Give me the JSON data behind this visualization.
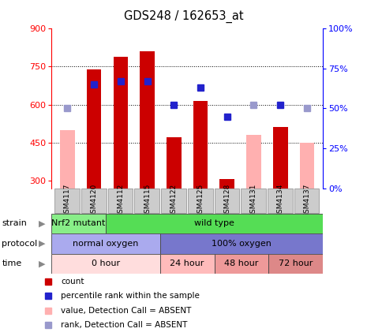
{
  "title": "GDS248 / 162653_at",
  "samples": [
    "GSM4117",
    "GSM4120",
    "GSM4112",
    "GSM4115",
    "GSM4122",
    "GSM4125",
    "GSM4128",
    "GSM4131",
    "GSM4134",
    "GSM4137"
  ],
  "count_values": [
    500,
    740,
    790,
    810,
    470,
    615,
    305,
    480,
    510,
    450
  ],
  "count_absent": [
    true,
    false,
    false,
    false,
    false,
    false,
    false,
    true,
    false,
    true
  ],
  "rank_values": [
    50,
    65,
    67,
    67,
    52,
    63,
    45,
    52,
    52,
    50
  ],
  "rank_absent": [
    true,
    false,
    false,
    false,
    false,
    false,
    false,
    true,
    false,
    true
  ],
  "ylim_left": [
    270,
    900
  ],
  "ylim_right": [
    0,
    100
  ],
  "yticks_left": [
    300,
    450,
    600,
    750,
    900
  ],
  "yticks_right": [
    0,
    25,
    50,
    75,
    100
  ],
  "color_bar_present": "#cc0000",
  "color_bar_absent": "#ffb0b0",
  "color_rank_present": "#2222cc",
  "color_rank_absent": "#9999cc",
  "strain_labels": [
    [
      "Nrf2 mutant",
      0,
      2
    ],
    [
      "wild type",
      2,
      10
    ]
  ],
  "strain_colors": [
    "#88ee88",
    "#55dd55"
  ],
  "protocol_labels": [
    [
      "normal oxygen",
      0,
      4
    ],
    [
      "100% oxygen",
      4,
      10
    ]
  ],
  "protocol_colors": [
    "#aaaaee",
    "#7777cc"
  ],
  "time_labels": [
    [
      "0 hour",
      0,
      4
    ],
    [
      "24 hour",
      4,
      6
    ],
    [
      "48 hour",
      6,
      8
    ],
    [
      "72 hour",
      8,
      10
    ]
  ],
  "time_colors": [
    "#ffdddd",
    "#ffbbbb",
    "#ee9999",
    "#dd8888"
  ],
  "legend_labels": [
    "count",
    "percentile rank within the sample",
    "value, Detection Call = ABSENT",
    "rank, Detection Call = ABSENT"
  ],
  "legend_colors": [
    "#cc0000",
    "#2222cc",
    "#ffb0b0",
    "#9999cc"
  ]
}
